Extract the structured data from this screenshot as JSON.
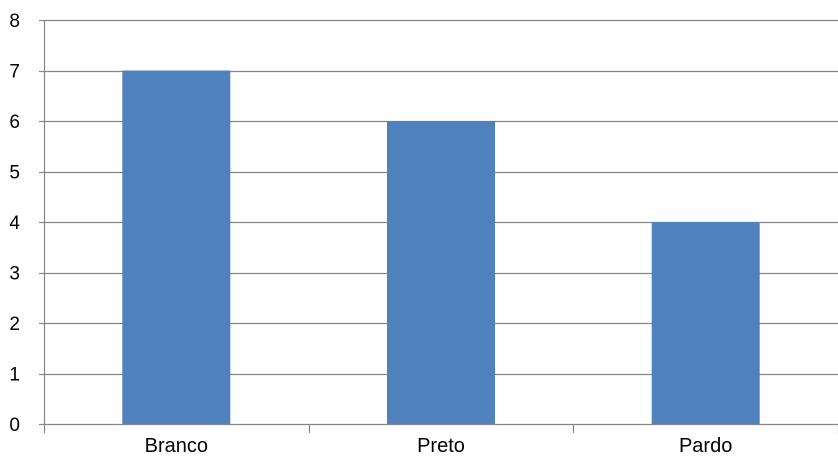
{
  "chart_data": {
    "type": "bar",
    "categories": [
      "Branco",
      "Preto",
      "Pardo"
    ],
    "values": [
      7,
      6,
      4
    ],
    "ylim": [
      0,
      8
    ],
    "yticks": [
      0,
      1,
      2,
      3,
      4,
      5,
      6,
      7,
      8
    ],
    "title": "",
    "xlabel": "",
    "ylabel": "",
    "grid": true,
    "legend": "none",
    "colors": {
      "bar": "#4f81bd",
      "grid": "#868686",
      "axis": "#868686"
    }
  }
}
